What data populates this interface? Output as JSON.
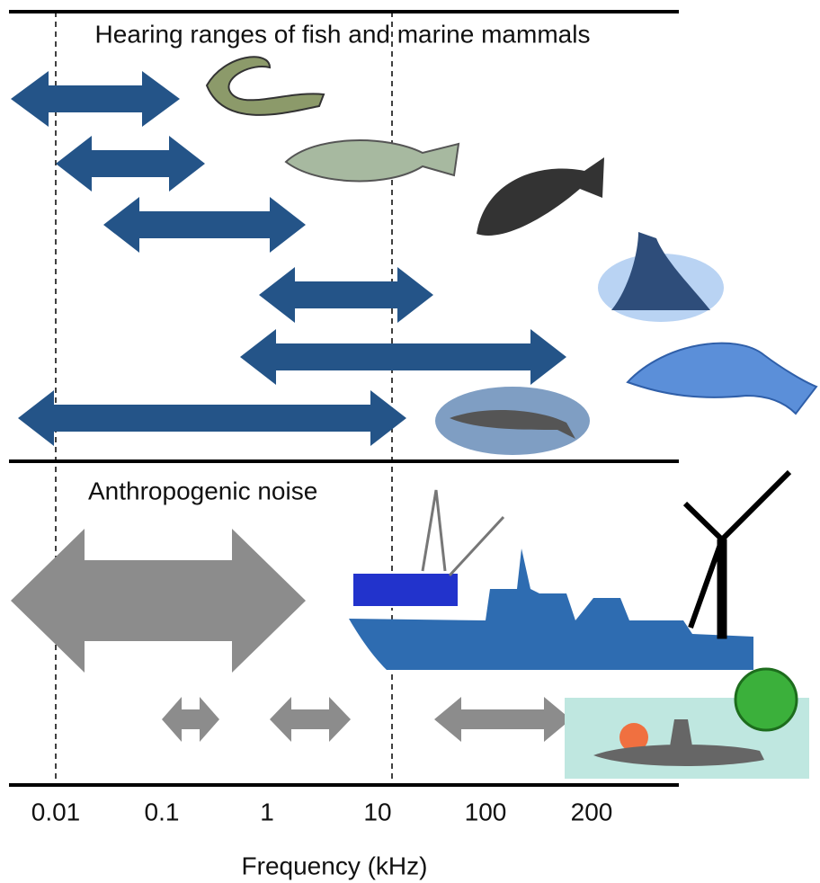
{
  "header": {
    "title": "Hearing ranges of fish and marine mammals"
  },
  "section": {
    "label": "Anthropogenic noise"
  },
  "axis": {
    "ticks": [
      "0.01",
      "0.1",
      "1",
      "10",
      "100",
      "200"
    ],
    "label": "Frequency (kHz)"
  }
}
